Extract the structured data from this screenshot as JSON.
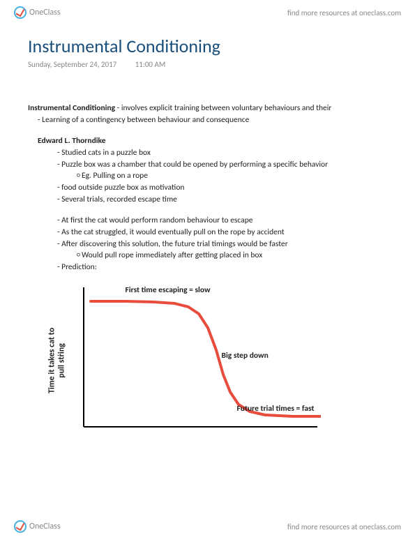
{
  "header": {
    "logo_text": "OneClass",
    "resources_text": "find more resources at oneclass.com"
  },
  "title": "Instrumental Conditioning",
  "dateline": {
    "date": "Sunday, September 24, 2017",
    "time": "11:00 AM"
  },
  "intro": {
    "lead_bold": "Instrumental Conditioning",
    "lead_rest": " - involves explicit training between voluntary behaviours and their",
    "sub1": "Learning of a contingency between behaviour and consequence"
  },
  "section2": {
    "heading": "Edward L. Thorndike",
    "b1": "Studied cats in a puzzle box",
    "b2": "Puzzle box was a chamber that could be opened by performing a specific behavior",
    "b2a": "Eg. Pulling on a rope",
    "b3": " food outside puzzle box as motivation",
    "b4": "Several trials, recorded escape time",
    "b5": "At first the cat would perform random behaviour to escape",
    "b6": "As the cat struggled, it would eventually pull on the rope by accident",
    "b7": "After discovering this solution, the future trial timings would be faster",
    "b7a": "Would pull rope immediately after getting placed in box",
    "b8": "Prediction:"
  },
  "chart": {
    "type": "line",
    "ylabel_line1": "Time it takes cat to",
    "ylabel_line2": "pull string",
    "ann_top": "First time escaping = slow",
    "ann_mid": "Big step down",
    "ann_bot": "Future trial times = fast",
    "axis_color": "#000000",
    "line_color": "#e84c3d",
    "line_width": 4,
    "background_color": "#ffffff",
    "title_fontsize": 12,
    "points": [
      [
        10,
        30
      ],
      [
        60,
        30
      ],
      [
        100,
        31
      ],
      [
        130,
        33
      ],
      [
        150,
        38
      ],
      [
        165,
        48
      ],
      [
        178,
        68
      ],
      [
        190,
        100
      ],
      [
        200,
        135
      ],
      [
        210,
        160
      ],
      [
        222,
        178
      ],
      [
        238,
        188
      ],
      [
        260,
        193
      ],
      [
        300,
        195
      ],
      [
        340,
        195
      ]
    ],
    "xlim": [
      0,
      350
    ],
    "ylim": [
      0,
      210
    ]
  },
  "footer": {
    "logo_text": "OneClass",
    "resources_text": "find more resources at oneclass.com"
  }
}
